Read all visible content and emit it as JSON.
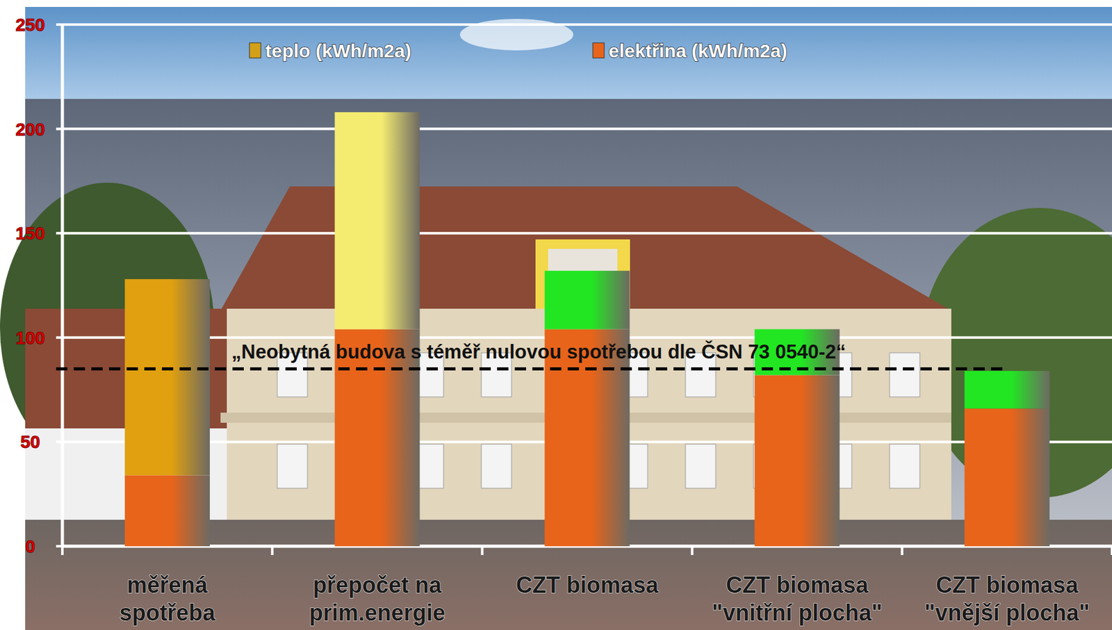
{
  "chart_data": {
    "type": "bar",
    "stacked": true,
    "categories": [
      "měřená\nspotřeba",
      "přepočet na\nprim.energie",
      "CZT  biomasa",
      "CZT biomasa\n\"vnitřní plocha\"",
      "CZT biomasa\n\"vnější plocha\""
    ],
    "series": [
      {
        "name": "teplo (kWh/m2a)",
        "color": "#d4a017",
        "colors": [
          "#e0a010",
          "#f4ec70",
          "#22e622",
          "#22e622",
          "#22e622"
        ],
        "values": [
          94,
          104,
          28,
          22,
          18
        ]
      },
      {
        "name": "elektřina (kWh/m2a)",
        "color": "#e8641a",
        "values": [
          34,
          104,
          104,
          82,
          66
        ]
      }
    ],
    "ylim": [
      0,
      250
    ],
    "yticks": [
      0,
      50,
      100,
      150,
      200,
      250
    ],
    "grid": true,
    "legend": "top",
    "annotations": [
      {
        "text": "„Neobytná budova s téměř nulovou spotřebou dle ČSN 73 0540-2“",
        "y": 85,
        "line_style": "dashed"
      }
    ]
  }
}
